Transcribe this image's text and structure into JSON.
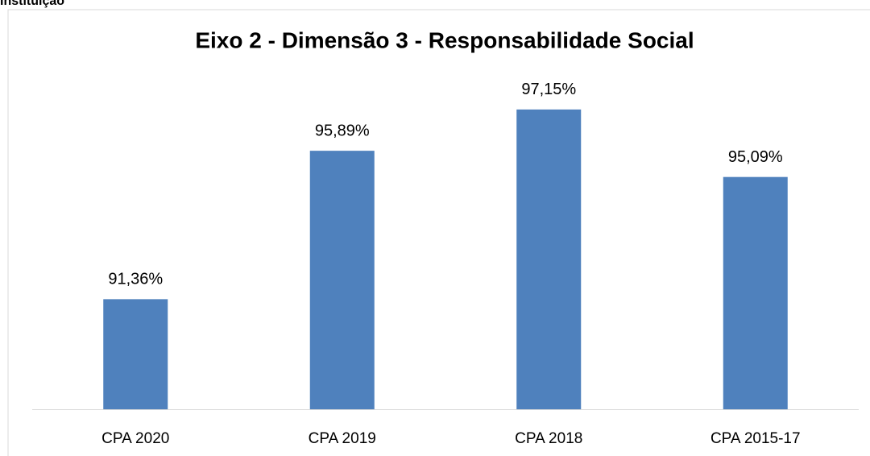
{
  "heading": "Instituição",
  "chart_data": {
    "type": "bar",
    "title": "Eixo 2 - Dimensão 3 - Responsabilidade Social",
    "categories": [
      "CPA 2020",
      "CPA 2019",
      "CPA 2018",
      "CPA 2015-17"
    ],
    "values": [
      91.36,
      95.89,
      97.15,
      95.09
    ],
    "value_labels": [
      "91,36%",
      "95,89%",
      "97,15%",
      "95,09%"
    ],
    "color": "#4f81bd",
    "ylim": [
      88,
      100
    ]
  }
}
